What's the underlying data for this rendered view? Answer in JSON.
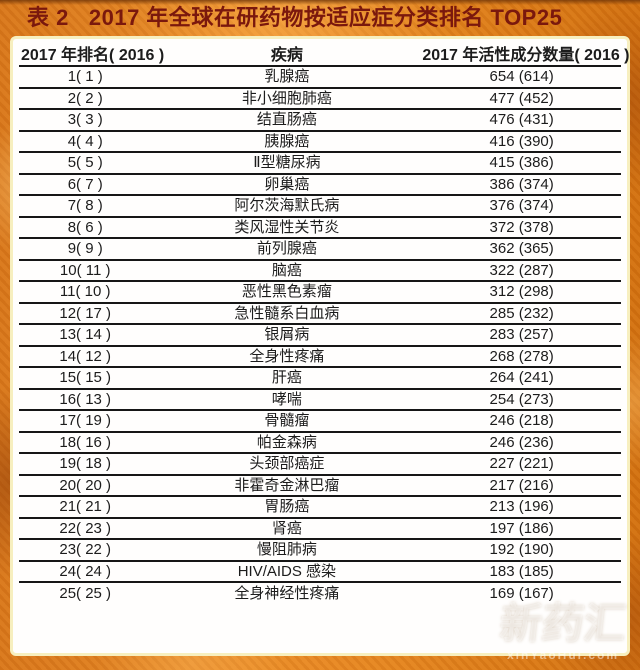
{
  "header": {
    "table_label": "表 2",
    "title": "2017 年全球在研药物按适应症分类排名 TOP25"
  },
  "chart_data": {
    "type": "table",
    "title": "表2 2017年全球在研药物按适应症分类排名TOP25",
    "columns": [
      "2017 年排名( 2016 )",
      "疾病",
      "2017 年活性成分数量( 2016 )"
    ],
    "rows": [
      [
        "1( 1 )",
        "乳腺癌",
        "654 (614)"
      ],
      [
        "2( 2 )",
        "非小细胞肺癌",
        "477 (452)"
      ],
      [
        "3( 3 )",
        "结直肠癌",
        "476 (431)"
      ],
      [
        "4( 4 )",
        "胰腺癌",
        "416 (390)"
      ],
      [
        "5( 5 )",
        "Ⅱ型糖尿病",
        "415 (386)"
      ],
      [
        "6( 7 )",
        "卵巢癌",
        "386 (374)"
      ],
      [
        "7( 8 )",
        "阿尔茨海默氏病",
        "376 (374)"
      ],
      [
        "8( 6 )",
        "类风湿性关节炎",
        "372 (378)"
      ],
      [
        "9( 9 )",
        "前列腺癌",
        "362 (365)"
      ],
      [
        "10( 11 )",
        "脑癌",
        "322 (287)"
      ],
      [
        "11( 10 )",
        "恶性黑色素瘤",
        "312 (298)"
      ],
      [
        "12( 17 )",
        "急性髓系白血病",
        "285 (232)"
      ],
      [
        "13( 14 )",
        "银屑病",
        "283 (257)"
      ],
      [
        "14( 12 )",
        "全身性疼痛",
        "268 (278)"
      ],
      [
        "15( 15 )",
        "肝癌",
        "264 (241)"
      ],
      [
        "16( 13 )",
        "哮喘",
        "254 (273)"
      ],
      [
        "17( 19 )",
        "骨髓瘤",
        "246 (218)"
      ],
      [
        "18( 16 )",
        "帕金森病",
        "246 (236)"
      ],
      [
        "19( 18 )",
        "头颈部癌症",
        "227 (221)"
      ],
      [
        "20( 20 )",
        "非霍奇金淋巴瘤",
        "217 (216)"
      ],
      [
        "21( 21 )",
        "胃肠癌",
        "213 (196)"
      ],
      [
        "22( 23 )",
        "肾癌",
        "197 (186)"
      ],
      [
        "23( 22 )",
        "慢阻肺病",
        "192 (190)"
      ],
      [
        "24( 24 )",
        "HIV/AIDS 感染",
        "183 (185)"
      ],
      [
        "25( 25 )",
        "全身神经性疼痛",
        "169 (167)"
      ]
    ],
    "records": [
      {
        "rank_2017": 1,
        "rank_2016": 1,
        "disease": "乳腺癌",
        "active_ingredients_2017": 654,
        "active_ingredients_2016": 614
      },
      {
        "rank_2017": 2,
        "rank_2016": 2,
        "disease": "非小细胞肺癌",
        "active_ingredients_2017": 477,
        "active_ingredients_2016": 452
      },
      {
        "rank_2017": 3,
        "rank_2016": 3,
        "disease": "结直肠癌",
        "active_ingredients_2017": 476,
        "active_ingredients_2016": 431
      },
      {
        "rank_2017": 4,
        "rank_2016": 4,
        "disease": "胰腺癌",
        "active_ingredients_2017": 416,
        "active_ingredients_2016": 390
      },
      {
        "rank_2017": 5,
        "rank_2016": 5,
        "disease": "Ⅱ型糖尿病",
        "active_ingredients_2017": 415,
        "active_ingredients_2016": 386
      },
      {
        "rank_2017": 6,
        "rank_2016": 7,
        "disease": "卵巢癌",
        "active_ingredients_2017": 386,
        "active_ingredients_2016": 374
      },
      {
        "rank_2017": 7,
        "rank_2016": 8,
        "disease": "阿尔茨海默氏病",
        "active_ingredients_2017": 376,
        "active_ingredients_2016": 374
      },
      {
        "rank_2017": 8,
        "rank_2016": 6,
        "disease": "类风湿性关节炎",
        "active_ingredients_2017": 372,
        "active_ingredients_2016": 378
      },
      {
        "rank_2017": 9,
        "rank_2016": 9,
        "disease": "前列腺癌",
        "active_ingredients_2017": 362,
        "active_ingredients_2016": 365
      },
      {
        "rank_2017": 10,
        "rank_2016": 11,
        "disease": "脑癌",
        "active_ingredients_2017": 322,
        "active_ingredients_2016": 287
      },
      {
        "rank_2017": 11,
        "rank_2016": 10,
        "disease": "恶性黑色素瘤",
        "active_ingredients_2017": 312,
        "active_ingredients_2016": 298
      },
      {
        "rank_2017": 12,
        "rank_2016": 17,
        "disease": "急性髓系白血病",
        "active_ingredients_2017": 285,
        "active_ingredients_2016": 232
      },
      {
        "rank_2017": 13,
        "rank_2016": 14,
        "disease": "银屑病",
        "active_ingredients_2017": 283,
        "active_ingredients_2016": 257
      },
      {
        "rank_2017": 14,
        "rank_2016": 12,
        "disease": "全身性疼痛",
        "active_ingredients_2017": 268,
        "active_ingredients_2016": 278
      },
      {
        "rank_2017": 15,
        "rank_2016": 15,
        "disease": "肝癌",
        "active_ingredients_2017": 264,
        "active_ingredients_2016": 241
      },
      {
        "rank_2017": 16,
        "rank_2016": 13,
        "disease": "哮喘",
        "active_ingredients_2017": 254,
        "active_ingredients_2016": 273
      },
      {
        "rank_2017": 17,
        "rank_2016": 19,
        "disease": "骨髓瘤",
        "active_ingredients_2017": 246,
        "active_ingredients_2016": 218
      },
      {
        "rank_2017": 18,
        "rank_2016": 16,
        "disease": "帕金森病",
        "active_ingredients_2017": 246,
        "active_ingredients_2016": 236
      },
      {
        "rank_2017": 19,
        "rank_2016": 18,
        "disease": "头颈部癌症",
        "active_ingredients_2017": 227,
        "active_ingredients_2016": 221
      },
      {
        "rank_2017": 20,
        "rank_2016": 20,
        "disease": "非霍奇金淋巴瘤",
        "active_ingredients_2017": 217,
        "active_ingredients_2016": 216
      },
      {
        "rank_2017": 21,
        "rank_2016": 21,
        "disease": "胃肠癌",
        "active_ingredients_2017": 213,
        "active_ingredients_2016": 196
      },
      {
        "rank_2017": 22,
        "rank_2016": 23,
        "disease": "肾癌",
        "active_ingredients_2017": 197,
        "active_ingredients_2016": 186
      },
      {
        "rank_2017": 23,
        "rank_2016": 22,
        "disease": "慢阻肺病",
        "active_ingredients_2017": 192,
        "active_ingredients_2016": 190
      },
      {
        "rank_2017": 24,
        "rank_2016": 24,
        "disease": "HIV/AIDS 感染",
        "active_ingredients_2017": 183,
        "active_ingredients_2016": 185
      },
      {
        "rank_2017": 25,
        "rank_2016": 25,
        "disease": "全身神经性疼痛",
        "active_ingredients_2017": 169,
        "active_ingredients_2016": 167
      }
    ]
  },
  "watermark": {
    "logo_text": "新药汇",
    "site": "xinYaoHui.com"
  },
  "colors": {
    "background_orange": "#e0801f",
    "title_red": "#7a180d",
    "panel_border_cream": "#f7efbf",
    "table_line_black": "#161616",
    "table_text": "#1c1c1c"
  }
}
